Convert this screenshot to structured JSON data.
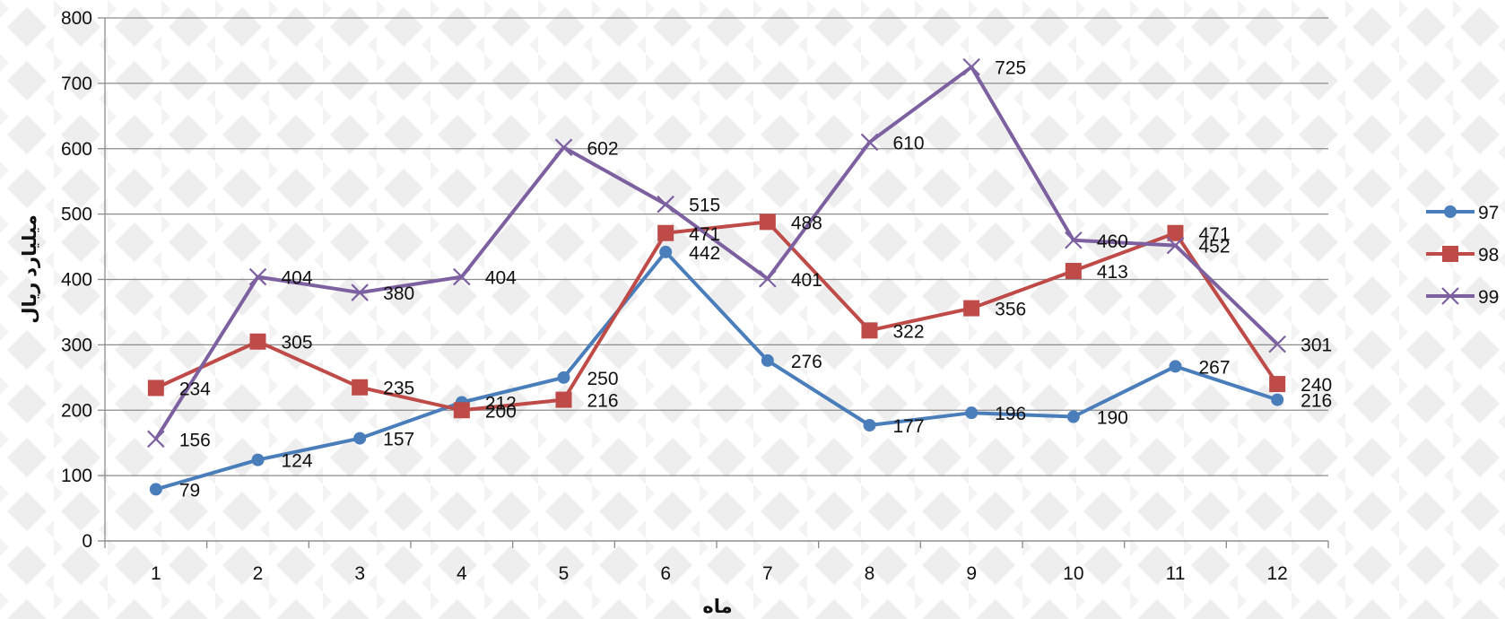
{
  "chart_data": {
    "type": "line",
    "title": "",
    "xlabel": "ماه",
    "ylabel": "میلیارد ریال",
    "x": [
      "1",
      "2",
      "3",
      "4",
      "5",
      "6",
      "7",
      "8",
      "9",
      "10",
      "11",
      "12"
    ],
    "ylim": [
      0,
      800
    ],
    "yticks": [
      0,
      100,
      200,
      300,
      400,
      500,
      600,
      700,
      800
    ],
    "grid": "horizontal",
    "legend": "right",
    "series": [
      {
        "name": "97",
        "color": "#4a7ebb",
        "marker": "circle",
        "values": [
          79,
          124,
          157,
          212,
          250,
          442,
          276,
          177,
          196,
          190,
          267,
          216
        ]
      },
      {
        "name": "98",
        "color": "#be4b48",
        "marker": "square",
        "values": [
          234,
          305,
          235,
          200,
          216,
          471,
          488,
          322,
          356,
          413,
          471,
          240
        ]
      },
      {
        "name": "99",
        "color": "#7d60a0",
        "marker": "x",
        "values": [
          156,
          404,
          380,
          404,
          602,
          515,
          401,
          610,
          725,
          460,
          452,
          301
        ]
      }
    ]
  }
}
